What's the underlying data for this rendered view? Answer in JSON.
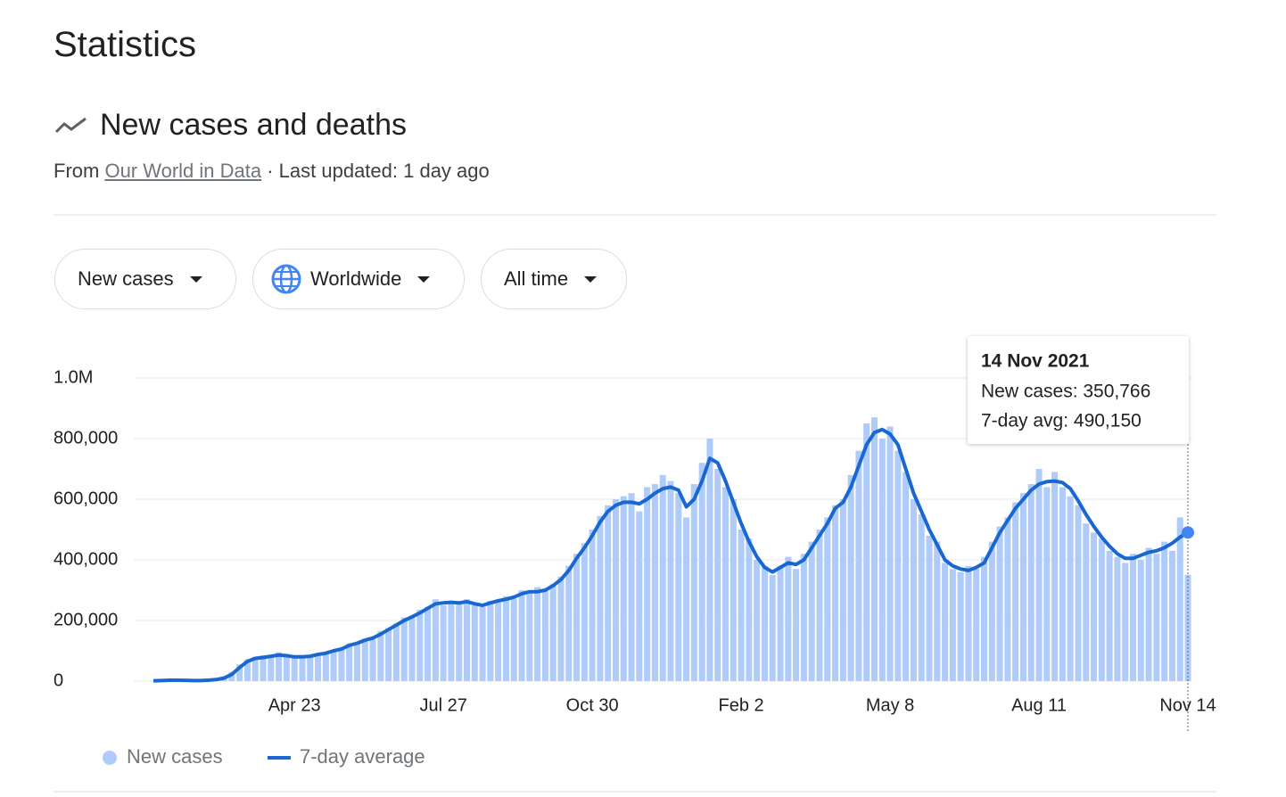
{
  "page": {
    "title": "Statistics",
    "section_title": "New cases and deaths",
    "source_prefix": "From",
    "source_link": "Our World in Data",
    "updated": "· Last updated: 1 day ago",
    "filters": [
      "New cases",
      "Worldwide",
      "All time"
    ]
  },
  "chart_data": {
    "type": "bar_line",
    "categories": [
      null,
      null,
      null,
      null,
      null,
      null,
      null,
      null,
      null,
      null,
      null,
      null,
      null,
      null,
      null,
      null,
      null,
      null,
      "Apr 23",
      null,
      null,
      null,
      null,
      null,
      null,
      null,
      null,
      null,
      null,
      null,
      null,
      null,
      null,
      null,
      null,
      null,
      null,
      "Jul 27",
      null,
      null,
      null,
      null,
      null,
      null,
      null,
      null,
      null,
      null,
      null,
      null,
      null,
      null,
      null,
      null,
      null,
      null,
      "Oct 30",
      null,
      null,
      null,
      null,
      null,
      null,
      null,
      null,
      null,
      null,
      null,
      null,
      null,
      null,
      null,
      null,
      null,
      null,
      "Feb 2",
      null,
      null,
      null,
      null,
      null,
      null,
      null,
      null,
      null,
      null,
      null,
      null,
      null,
      null,
      null,
      null,
      null,
      null,
      "May 8",
      null,
      null,
      null,
      null,
      null,
      null,
      null,
      null,
      null,
      null,
      null,
      null,
      null,
      null,
      null,
      null,
      null,
      null,
      "Aug 11",
      null,
      null,
      null,
      null,
      null,
      null,
      null,
      null,
      null,
      null,
      null,
      null,
      null,
      null,
      null,
      null,
      null,
      null,
      "Nov 14"
    ],
    "series": [
      {
        "name": "New cases",
        "color": "#aecbfa",
        "kind": "bar",
        "values": [
          500,
          2500,
          3500,
          2000,
          2000,
          1500,
          2500,
          4000,
          7000,
          14000,
          30000,
          55000,
          72000,
          80000,
          85000,
          80000,
          95000,
          80000,
          78000,
          85000,
          78000,
          92000,
          95000,
          98000,
          110000,
          125000,
          122000,
          140000,
          138000,
          165000,
          175000,
          190000,
          210000,
          215000,
          235000,
          245000,
          270000,
          250000,
          265000,
          255000,
          270000,
          250000,
          245000,
          265000,
          270000,
          280000,
          272000,
          300000,
          290000,
          310000,
          305000,
          320000,
          345000,
          380000,
          420000,
          455000,
          500000,
          545000,
          580000,
          600000,
          610000,
          620000,
          560000,
          640000,
          650000,
          680000,
          660000,
          620000,
          540000,
          650000,
          720000,
          800000,
          700000,
          640000,
          600000,
          500000,
          470000,
          400000,
          380000,
          350000,
          380000,
          410000,
          370000,
          420000,
          460000,
          500000,
          540000,
          580000,
          600000,
          680000,
          760000,
          850000,
          870000,
          800000,
          840000,
          760000,
          690000,
          600000,
          550000,
          480000,
          460000,
          390000,
          370000,
          360000,
          380000,
          370000,
          410000,
          460000,
          510000,
          540000,
          590000,
          620000,
          650000,
          700000,
          640000,
          690000,
          640000,
          610000,
          580000,
          520000,
          490000,
          470000,
          430000,
          410000,
          390000,
          420000,
          400000,
          440000,
          420000,
          460000,
          430000,
          540000,
          350766
        ]
      },
      {
        "name": "7-day average",
        "color": "#1967d2",
        "kind": "line",
        "values": [
          1000,
          2000,
          3000,
          3000,
          2500,
          2000,
          2000,
          3000,
          5000,
          10000,
          22000,
          45000,
          65000,
          75000,
          78000,
          82000,
          86000,
          84000,
          80000,
          80000,
          82000,
          88000,
          92000,
          100000,
          106000,
          118000,
          125000,
          135000,
          142000,
          155000,
          170000,
          185000,
          200000,
          212000,
          225000,
          240000,
          255000,
          258000,
          260000,
          258000,
          262000,
          255000,
          250000,
          258000,
          265000,
          270000,
          277000,
          288000,
          295000,
          295000,
          300000,
          315000,
          335000,
          365000,
          405000,
          440000,
          480000,
          525000,
          560000,
          580000,
          590000,
          590000,
          585000,
          600000,
          620000,
          635000,
          640000,
          630000,
          575000,
          600000,
          660000,
          735000,
          720000,
          660000,
          590000,
          520000,
          460000,
          410000,
          375000,
          360000,
          375000,
          390000,
          385000,
          400000,
          440000,
          480000,
          520000,
          570000,
          590000,
          640000,
          710000,
          780000,
          820000,
          830000,
          815000,
          780000,
          700000,
          620000,
          560000,
          500000,
          450000,
          400000,
          380000,
          370000,
          365000,
          375000,
          390000,
          440000,
          490000,
          530000,
          570000,
          600000,
          630000,
          650000,
          658000,
          660000,
          655000,
          635000,
          595000,
          550000,
          510000,
          475000,
          445000,
          420000,
          405000,
          405000,
          415000,
          425000,
          430000,
          440000,
          455000,
          475000,
          490150
        ]
      }
    ],
    "ylim": [
      0,
      1000000
    ],
    "yticks": [
      0,
      {
        "value": 200000,
        "label": "200,000"
      },
      {
        "value": 400000,
        "label": "400,000"
      },
      {
        "value": 600000,
        "label": "600,000"
      },
      {
        "value": 800000,
        "label": "800,000"
      },
      {
        "value": 1000000,
        "label": "1.0M"
      }
    ],
    "grid": true,
    "legend": "bottom-left",
    "tooltip": {
      "title": "14 Nov 2021",
      "lines": [
        "New cases: 350,766",
        "7-day avg: 490,150"
      ]
    }
  }
}
